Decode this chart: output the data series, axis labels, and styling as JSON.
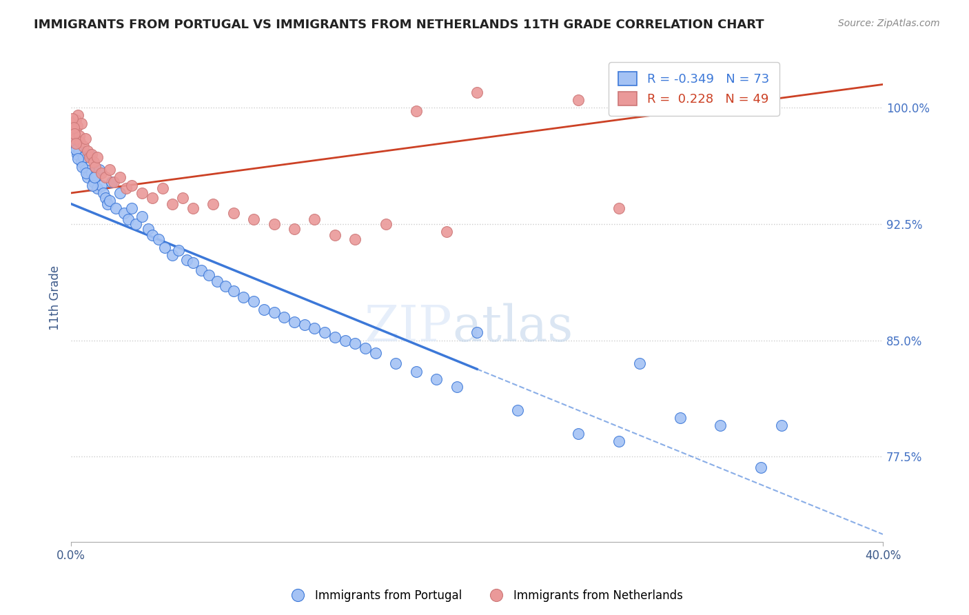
{
  "title": "IMMIGRANTS FROM PORTUGAL VS IMMIGRANTS FROM NETHERLANDS 11TH GRADE CORRELATION CHART",
  "source": "Source: ZipAtlas.com",
  "ylabel": "11th Grade",
  "y_ticks": [
    77.5,
    85.0,
    92.5,
    100.0
  ],
  "xlim": [
    0.0,
    40.0
  ],
  "ylim": [
    72.0,
    103.5
  ],
  "blue_r": -0.349,
  "blue_n": 73,
  "pink_r": 0.228,
  "pink_n": 49,
  "blue_color": "#a4c2f4",
  "pink_color": "#ea9999",
  "blue_line_color": "#3c78d8",
  "pink_line_color": "#cc4125",
  "legend_label_blue": "Immigrants from Portugal",
  "legend_label_pink": "Immigrants from Netherlands",
  "blue_line_x0": 0.0,
  "blue_line_y0": 93.8,
  "blue_line_x1": 40.0,
  "blue_line_y1": 72.5,
  "blue_solid_end": 20.0,
  "pink_line_x0": 0.0,
  "pink_line_y0": 94.5,
  "pink_line_x1": 40.0,
  "pink_line_y1": 101.5,
  "blue_x": [
    0.2,
    0.3,
    0.4,
    0.5,
    0.6,
    0.7,
    0.8,
    0.9,
    1.0,
    1.1,
    1.2,
    1.3,
    1.4,
    1.5,
    1.6,
    1.7,
    1.8,
    1.9,
    2.0,
    2.2,
    2.4,
    2.6,
    2.8,
    3.0,
    3.2,
    3.5,
    3.8,
    4.0,
    4.3,
    4.6,
    5.0,
    5.3,
    5.7,
    6.0,
    6.4,
    6.8,
    7.2,
    7.6,
    8.0,
    8.5,
    9.0,
    9.5,
    10.0,
    10.5,
    11.0,
    11.5,
    12.0,
    12.5,
    13.0,
    13.5,
    14.0,
    14.5,
    15.0,
    16.0,
    17.0,
    18.0,
    19.0,
    20.0,
    22.0,
    25.0,
    27.0,
    28.0,
    30.0,
    32.0,
    34.0,
    35.0,
    0.15,
    0.25,
    0.35,
    0.55,
    0.75,
    1.05,
    1.15
  ],
  "blue_y": [
    97.5,
    97.0,
    97.2,
    96.5,
    96.8,
    96.0,
    95.5,
    97.0,
    95.8,
    95.2,
    95.5,
    94.8,
    96.0,
    95.0,
    94.5,
    94.2,
    93.8,
    94.0,
    95.2,
    93.5,
    94.5,
    93.2,
    92.8,
    93.5,
    92.5,
    93.0,
    92.2,
    91.8,
    91.5,
    91.0,
    90.5,
    90.8,
    90.2,
    90.0,
    89.5,
    89.2,
    88.8,
    88.5,
    88.2,
    87.8,
    87.5,
    87.0,
    86.8,
    86.5,
    86.2,
    86.0,
    85.8,
    85.5,
    85.2,
    85.0,
    84.8,
    84.5,
    84.2,
    83.5,
    83.0,
    82.5,
    82.0,
    85.5,
    80.5,
    79.0,
    78.5,
    83.5,
    80.0,
    79.5,
    76.8,
    79.5,
    97.8,
    97.3,
    96.7,
    96.2,
    95.8,
    95.0,
    95.5
  ],
  "pink_x": [
    0.1,
    0.15,
    0.2,
    0.25,
    0.3,
    0.35,
    0.4,
    0.45,
    0.5,
    0.6,
    0.7,
    0.8,
    0.9,
    1.0,
    1.1,
    1.2,
    1.3,
    1.5,
    1.7,
    1.9,
    2.1,
    2.4,
    2.7,
    3.0,
    3.5,
    4.0,
    4.5,
    5.0,
    5.5,
    6.0,
    7.0,
    8.0,
    9.0,
    10.0,
    11.0,
    12.0,
    13.0,
    14.0,
    15.5,
    17.0,
    18.5,
    20.0,
    25.0,
    27.0,
    30.0,
    0.08,
    0.12,
    0.18,
    0.22
  ],
  "pink_y": [
    99.0,
    98.5,
    98.0,
    99.2,
    98.8,
    99.5,
    98.2,
    97.8,
    99.0,
    97.5,
    98.0,
    97.2,
    96.8,
    97.0,
    96.5,
    96.2,
    96.8,
    95.8,
    95.5,
    96.0,
    95.2,
    95.5,
    94.8,
    95.0,
    94.5,
    94.2,
    94.8,
    93.8,
    94.2,
    93.5,
    93.8,
    93.2,
    92.8,
    92.5,
    92.2,
    92.8,
    91.8,
    91.5,
    92.5,
    99.8,
    92.0,
    101.0,
    100.5,
    93.5,
    101.5,
    99.3,
    98.7,
    98.3,
    97.7
  ]
}
